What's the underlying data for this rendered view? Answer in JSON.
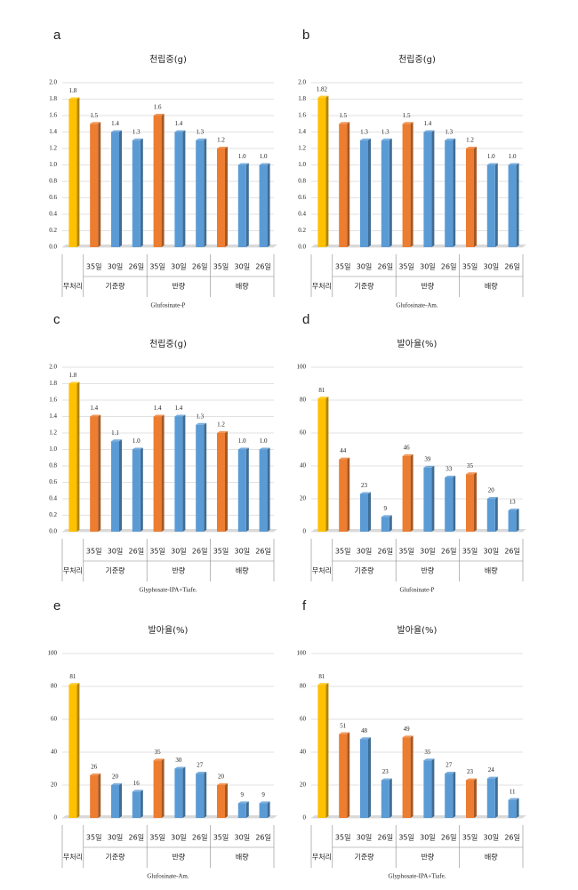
{
  "chart_data": [
    {
      "type": "bar",
      "label": "a",
      "title": "천립중(g)",
      "xlabel": "Glufosinate-P",
      "categories": [
        "무처리",
        "35일",
        "30일",
        "26일",
        "35일",
        "30일",
        "26일",
        "35일",
        "30일",
        "26일"
      ],
      "groups": [
        "기준량",
        "반량",
        "배량"
      ],
      "values": [
        1.8,
        1.5,
        1.4,
        1.3,
        1.6,
        1.4,
        1.3,
        1.2,
        1.0,
        1.0
      ],
      "value_labels": [
        "1.8",
        "1.5",
        "1.4",
        "1.3",
        "1.6",
        "1.4",
        "1.3",
        "1.2",
        "1.0",
        "1.0"
      ],
      "colors": [
        "#ffc000",
        "#ed7d31",
        "#5b9bd5",
        "#5b9bd5",
        "#ed7d31",
        "#5b9bd5",
        "#5b9bd5",
        "#ed7d31",
        "#5b9bd5",
        "#5b9bd5"
      ],
      "ylim": [
        0,
        2
      ],
      "yticks": [
        {
          "value": 0,
          "label": "0.0"
        },
        0.2,
        0.4,
        0.6,
        0.8,
        {
          "value": 1,
          "label": "1.0"
        },
        1.2,
        1.4,
        1.6,
        1.8,
        {
          "value": 2,
          "label": "2.0"
        }
      ],
      "grid": true
    },
    {
      "type": "bar",
      "label": "b",
      "title": "천립중(g)",
      "xlabel": "Glufosinate-Am.",
      "categories": [
        "무처리",
        "35일",
        "30일",
        "26일",
        "35일",
        "30일",
        "26일",
        "35일",
        "30일",
        "26일"
      ],
      "groups": [
        "기준량",
        "반량",
        "배량"
      ],
      "values": [
        1.82,
        1.5,
        1.3,
        1.3,
        1.5,
        1.4,
        1.3,
        1.2,
        1.0,
        1.0
      ],
      "value_labels": [
        "1.82",
        "1.5",
        "1.3",
        "1.3",
        "1.5",
        "1.4",
        "1.3",
        "1.2",
        "1.0",
        "1.0"
      ],
      "colors": [
        "#ffc000",
        "#ed7d31",
        "#5b9bd5",
        "#5b9bd5",
        "#ed7d31",
        "#5b9bd5",
        "#5b9bd5",
        "#ed7d31",
        "#5b9bd5",
        "#5b9bd5"
      ],
      "ylim": [
        0,
        2
      ],
      "yticks": [
        {
          "value": 0,
          "label": "0.0"
        },
        0.2,
        0.4,
        0.6,
        0.8,
        {
          "value": 1,
          "label": "1.0"
        },
        1.2,
        1.4,
        1.6,
        1.8,
        {
          "value": 2,
          "label": "2.0"
        }
      ],
      "grid": true
    },
    {
      "type": "bar",
      "label": "c",
      "title": "천립중(g)",
      "xlabel": "Glyphosate-IPA+Tiafe.",
      "categories": [
        "무처리",
        "35일",
        "30일",
        "26일",
        "35일",
        "30일",
        "26일",
        "35일",
        "30일",
        "26일"
      ],
      "groups": [
        "기준량",
        "반량",
        "배량"
      ],
      "values": [
        1.8,
        1.4,
        1.1,
        1.0,
        1.4,
        1.4,
        1.3,
        1.2,
        1.0,
        1.0
      ],
      "value_labels": [
        "1.8",
        "1.4",
        "1.1",
        "1.0",
        "1.4",
        "1.4",
        "1.3",
        "1.2",
        "1.0",
        "1.0"
      ],
      "colors": [
        "#ffc000",
        "#ed7d31",
        "#5b9bd5",
        "#5b9bd5",
        "#ed7d31",
        "#5b9bd5",
        "#5b9bd5",
        "#ed7d31",
        "#5b9bd5",
        "#5b9bd5"
      ],
      "ylim": [
        0,
        2
      ],
      "yticks": [
        {
          "value": 0,
          "label": "0.0"
        },
        0.2,
        0.4,
        0.6,
        0.8,
        {
          "value": 1,
          "label": "1.0"
        },
        1.2,
        1.4,
        1.6,
        1.8,
        {
          "value": 2,
          "label": "2.0"
        }
      ],
      "grid": true
    },
    {
      "type": "bar",
      "label": "d",
      "title": "발아율(%)",
      "xlabel": "Glufosinate-P",
      "categories": [
        "무처리",
        "35일",
        "30일",
        "26일",
        "35일",
        "30일",
        "26일",
        "35일",
        "30일",
        "26일"
      ],
      "groups": [
        "기준량",
        "반량",
        "배량"
      ],
      "values": [
        81,
        44,
        23,
        9,
        46,
        39,
        33,
        35,
        20,
        13
      ],
      "colors": [
        "#ffc000",
        "#ed7d31",
        "#5b9bd5",
        "#5b9bd5",
        "#ed7d31",
        "#5b9bd5",
        "#5b9bd5",
        "#ed7d31",
        "#5b9bd5",
        "#5b9bd5"
      ],
      "ylim": [
        0,
        100
      ],
      "yticks": [
        0,
        20,
        40,
        60,
        80,
        100
      ],
      "grid": true
    },
    {
      "type": "bar",
      "label": "e",
      "title": "발아율(%)",
      "xlabel": "Glufosinate-Am.",
      "categories": [
        "무처리",
        "35일",
        "30일",
        "26일",
        "35일",
        "30일",
        "26일",
        "35일",
        "30일",
        "26일"
      ],
      "groups": [
        "기준량",
        "반량",
        "배량"
      ],
      "values": [
        81,
        26,
        20,
        16,
        35,
        30,
        27,
        20,
        9,
        9
      ],
      "colors": [
        "#ffc000",
        "#ed7d31",
        "#5b9bd5",
        "#5b9bd5",
        "#ed7d31",
        "#5b9bd5",
        "#5b9bd5",
        "#ed7d31",
        "#5b9bd5",
        "#5b9bd5"
      ],
      "ylim": [
        0,
        100
      ],
      "yticks": [
        0,
        20,
        40,
        60,
        80,
        100
      ],
      "grid": true
    },
    {
      "type": "bar",
      "label": "f",
      "title": "발아율(%)",
      "xlabel": "Glyphosate-IPA+Tiafe.",
      "categories": [
        "무처리",
        "35일",
        "30일",
        "26일",
        "35일",
        "30일",
        "26일",
        "35일",
        "30일",
        "26일"
      ],
      "groups": [
        "기준량",
        "반량",
        "배량"
      ],
      "values": [
        81,
        51,
        48,
        23,
        49,
        35,
        27,
        23,
        24,
        11
      ],
      "colors": [
        "#ffc000",
        "#ed7d31",
        "#5b9bd5",
        "#5b9bd5",
        "#ed7d31",
        "#5b9bd5",
        "#5b9bd5",
        "#ed7d31",
        "#5b9bd5",
        "#5b9bd5"
      ],
      "ylim": [
        0,
        100
      ],
      "yticks": [
        0,
        20,
        40,
        60,
        80,
        100
      ],
      "grid": true
    }
  ]
}
